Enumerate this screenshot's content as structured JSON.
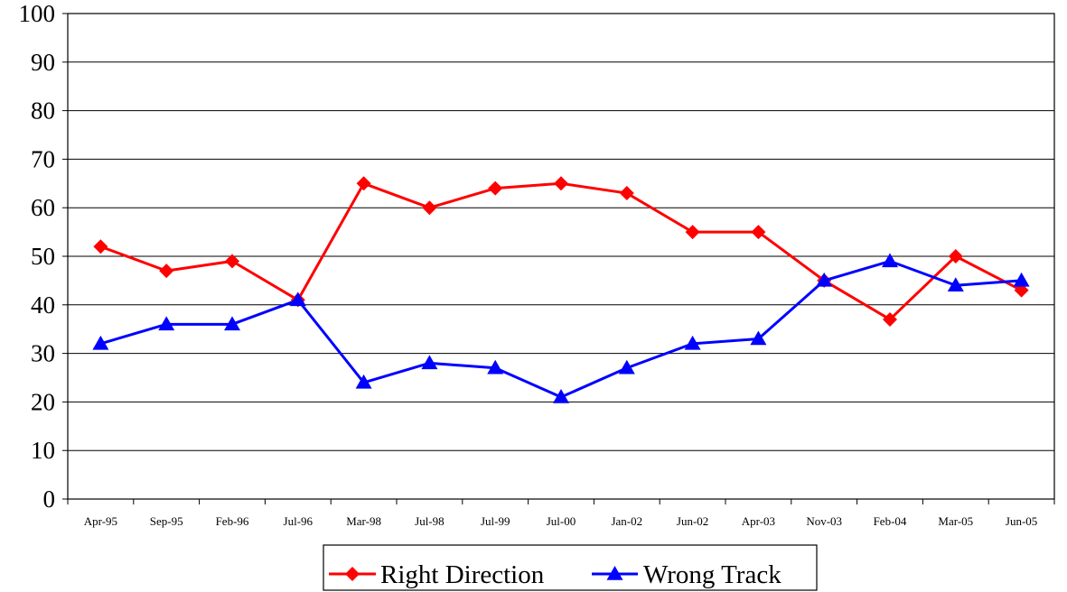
{
  "chart_data": {
    "type": "line",
    "title": "",
    "xlabel": "",
    "ylabel": "",
    "categories": [
      "Apr-95",
      "Sep-95",
      "Feb-96",
      "Jul-96",
      "Mar-98",
      "Jul-98",
      "Jul-99",
      "Jul-00",
      "Jan-02",
      "Jun-02",
      "Apr-03",
      "Nov-03",
      "Feb-04",
      "Mar-05",
      "Jun-05"
    ],
    "ylim": [
      0,
      100
    ],
    "yticks": [
      "0",
      "10",
      "20",
      "30",
      "40",
      "50",
      "60",
      "70",
      "80",
      "90",
      "100"
    ],
    "grid": true,
    "legend_position": "bottom",
    "series": [
      {
        "name": "Right Direction",
        "color": "#ff0000",
        "marker": "diamond",
        "values": [
          52,
          47,
          49,
          41,
          65,
          60,
          64,
          65,
          63,
          55,
          55,
          45,
          37,
          50,
          43
        ]
      },
      {
        "name": "Wrong Track",
        "color": "#0000ff",
        "marker": "triangle",
        "values": [
          32,
          36,
          36,
          41,
          24,
          28,
          27,
          21,
          27,
          32,
          33,
          45,
          49,
          44,
          45
        ]
      }
    ]
  }
}
